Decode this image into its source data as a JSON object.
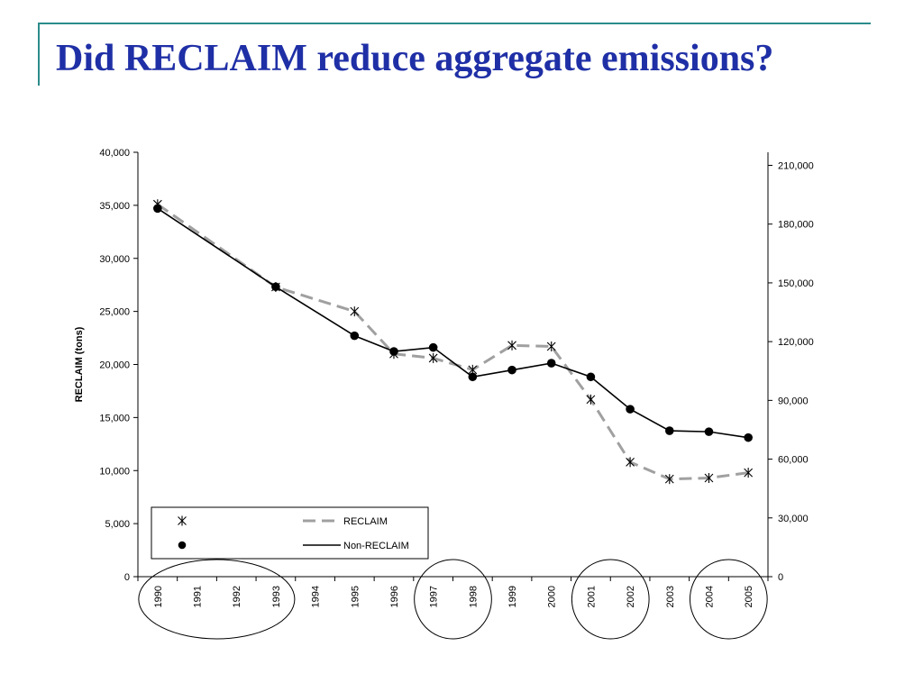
{
  "slide": {
    "title": "Did RECLAIM reduce aggregate emissions?"
  },
  "chart_data": {
    "type": "line",
    "title": "",
    "xlabel": "",
    "ylabel_left": "RECLAIM (tons)",
    "ylabel_right": "",
    "ylim_left": [
      0,
      40000
    ],
    "ylim_right": [
      0,
      216666
    ],
    "left_ticks": [
      0,
      5000,
      10000,
      15000,
      20000,
      25000,
      30000,
      35000,
      40000
    ],
    "left_tick_labels": [
      "0",
      "5,000",
      "10,000",
      "15,000",
      "20,000",
      "25,000",
      "30,000",
      "35,000",
      "40,000"
    ],
    "right_ticks": [
      0,
      30000,
      60000,
      90000,
      120000,
      150000,
      180000,
      210000
    ],
    "right_tick_labels": [
      "0",
      "30,000",
      "60,000",
      "90,000",
      "120,000",
      "150,000",
      "180,000",
      "210,000"
    ],
    "categories": [
      "1990",
      "1991",
      "1992",
      "1993",
      "1994",
      "1995",
      "1996",
      "1997",
      "1998",
      "1999",
      "2000",
      "2001",
      "2002",
      "2003",
      "2004",
      "2005"
    ],
    "grid": false,
    "legend_position": "bottom-left",
    "series": [
      {
        "name": "RECLAIM",
        "axis": "left",
        "style": "dashed",
        "marker": "asterisk",
        "color": "#a0a0a0",
        "values": [
          35100,
          null,
          null,
          27300,
          null,
          25000,
          21000,
          20600,
          19500,
          21800,
          21700,
          16700,
          10800,
          9200,
          9300,
          9800
        ]
      },
      {
        "name": "Non-RECLAIM",
        "axis": "right",
        "style": "solid",
        "marker": "dot",
        "color": "#000000",
        "values": [
          188000,
          null,
          null,
          148000,
          null,
          123000,
          115000,
          117000,
          102000,
          105500,
          109000,
          102000,
          85500,
          74500,
          74000,
          71000
        ]
      }
    ],
    "highlight_groups": [
      [
        "1990",
        "1993"
      ],
      [
        "1997",
        "1998"
      ],
      [
        "2001",
        "2002"
      ],
      [
        "2004",
        "2005"
      ]
    ]
  }
}
